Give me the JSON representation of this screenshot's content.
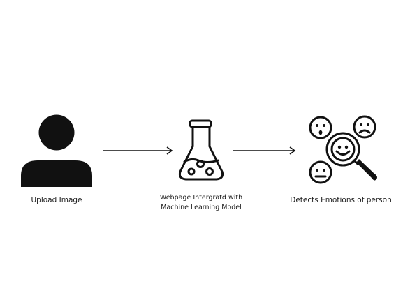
{
  "diagram": {
    "steps": [
      {
        "icon": "user-silhouette-icon",
        "label": "Upload Image"
      },
      {
        "icon": "flask-icon",
        "label_lines": [
          "Webpage Intergratd with",
          "Machine Learning Model"
        ]
      },
      {
        "icon": "emotion-detect-icon",
        "label": "Detects Emotions of person"
      }
    ],
    "connectors": [
      {
        "from": 0,
        "to": 1,
        "style": "arrow"
      },
      {
        "from": 1,
        "to": 2,
        "style": "arrow"
      }
    ],
    "colors": {
      "ink": "#111111",
      "background": "#ffffff"
    }
  }
}
